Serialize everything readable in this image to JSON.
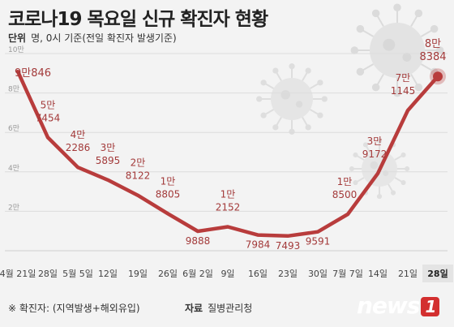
{
  "title": "코로나19 목요일 신규 확진자 현황",
  "unit": {
    "label": "단위",
    "text": "명, 0시 기준(전일 확진자 발생기준)"
  },
  "footer": {
    "note": "※ 확진자: (지역발생+해외유입)",
    "source_label": "자료",
    "source": "질병관리청"
  },
  "logo": {
    "text": "news",
    "badge": "1"
  },
  "colors": {
    "line": "#b83c3c",
    "grid": "#dcdcdc",
    "label": "#a33a3a",
    "background": "#f3f3f3"
  },
  "chart_data": {
    "type": "line",
    "title": "코로나19 목요일 신규 확진자 현황",
    "ylim": [
      0,
      100000
    ],
    "yticks": [
      {
        "value": 20000,
        "label": "2만"
      },
      {
        "value": 40000,
        "label": "4만"
      },
      {
        "value": 60000,
        "label": "6만"
      },
      {
        "value": 80000,
        "label": "8만"
      },
      {
        "value": 100000,
        "label": "10만"
      }
    ],
    "grid": true,
    "points": [
      {
        "x": "4월 21일",
        "value": 90846,
        "label_top": "9만",
        "label_bottom": "846"
      },
      {
        "x": "28일",
        "value": 57454,
        "label_top": "5만",
        "label_bottom": "7454"
      },
      {
        "x": "5월 5일",
        "value": 42286,
        "label_top": "4만",
        "label_bottom": "2286"
      },
      {
        "x": "12일",
        "value": 35895,
        "label_top": "3만",
        "label_bottom": "5895"
      },
      {
        "x": "19일",
        "value": 28122,
        "label_top": "2만",
        "label_bottom": "8122"
      },
      {
        "x": "26일",
        "value": 18805,
        "label_top": "1만",
        "label_bottom": "8805"
      },
      {
        "x": "6월 2일",
        "value": 9888,
        "label_top": "",
        "label_bottom": "9888"
      },
      {
        "x": "9일",
        "value": 12152,
        "label_top": "1만",
        "label_bottom": "2152"
      },
      {
        "x": "16일",
        "value": 7984,
        "label_top": "",
        "label_bottom": "7984"
      },
      {
        "x": "23일",
        "value": 7493,
        "label_top": "",
        "label_bottom": "7493"
      },
      {
        "x": "30일",
        "value": 9591,
        "label_top": "",
        "label_bottom": "9591"
      },
      {
        "x": "7월 7일",
        "value": 18500,
        "label_top": "1만",
        "label_bottom": "8500"
      },
      {
        "x": "14일",
        "value": 39172,
        "label_top": "3만",
        "label_bottom": "9172"
      },
      {
        "x": "21일",
        "value": 71145,
        "label_top": "7만",
        "label_bottom": "1145"
      },
      {
        "x": "28일",
        "value": 88384,
        "label_top": "8만",
        "label_bottom": "8384"
      }
    ]
  }
}
